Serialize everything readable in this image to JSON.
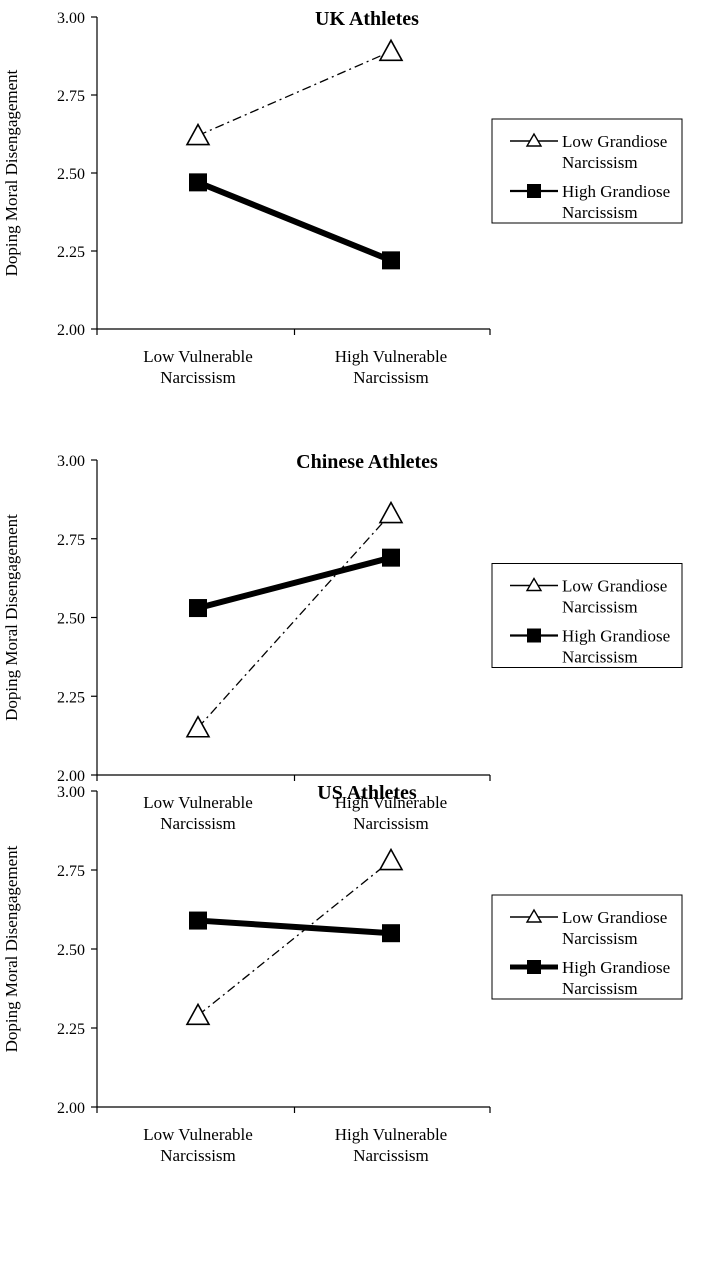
{
  "chart_data": [
    {
      "type": "line",
      "title": "UK Athletes",
      "ylabel": "Doping Moral Disengagement",
      "xlabel": "",
      "ylim": [
        2.0,
        3.0
      ],
      "yticks": [
        "2.00",
        "2.25",
        "2.50",
        "2.75",
        "3.00"
      ],
      "categories": [
        [
          "Low Vulnerable",
          "Narcissism"
        ],
        [
          "High Vulnerable",
          "Narcissism"
        ]
      ],
      "series": [
        {
          "name": [
            "Low Grandiose",
            "Narcissism"
          ],
          "values": [
            2.62,
            2.89
          ],
          "marker": "triangle",
          "style": "dashdot"
        },
        {
          "name": [
            "High Grandiose",
            "Narcissism"
          ],
          "values": [
            2.47,
            2.22
          ],
          "marker": "square",
          "style": "solid"
        }
      ],
      "legend_position": "right"
    },
    {
      "type": "line",
      "title": "Chinese Athletes",
      "ylabel": "Doping Moral Disengagement",
      "xlabel": "",
      "ylim": [
        2.0,
        3.0
      ],
      "yticks": [
        "2.00",
        "2.25",
        "2.50",
        "2.75",
        "3.00"
      ],
      "categories": [
        [
          "Low Vulnerable",
          "Narcissism"
        ],
        [
          "High Vulnerable",
          "Narcissism"
        ]
      ],
      "series": [
        {
          "name": [
            "Low Grandiose",
            "Narcissism"
          ],
          "values": [
            2.15,
            2.83
          ],
          "marker": "triangle",
          "style": "dashdot"
        },
        {
          "name": [
            "High Grandiose",
            "Narcissism"
          ],
          "values": [
            2.53,
            2.69
          ],
          "marker": "square",
          "style": "solid"
        }
      ],
      "legend_position": "right"
    },
    {
      "type": "line",
      "title": "US Athletes",
      "ylabel": "Doping Moral Disengagement",
      "xlabel": "",
      "ylim": [
        2.0,
        3.0
      ],
      "yticks": [
        "2.00",
        "2.25",
        "2.50",
        "2.75",
        "3.00"
      ],
      "categories": [
        [
          "Low Vulnerable",
          "Narcissism"
        ],
        [
          "High Vulnerable",
          "Narcissism"
        ]
      ],
      "series": [
        {
          "name": [
            "Low Grandiose",
            "Narcissism"
          ],
          "values": [
            2.29,
            2.78
          ],
          "marker": "triangle",
          "style": "dashdot"
        },
        {
          "name": [
            "High Grandiose",
            "Narcissism"
          ],
          "values": [
            2.59,
            2.55
          ],
          "marker": "square",
          "style": "solid"
        }
      ],
      "legend_position": "right"
    }
  ]
}
